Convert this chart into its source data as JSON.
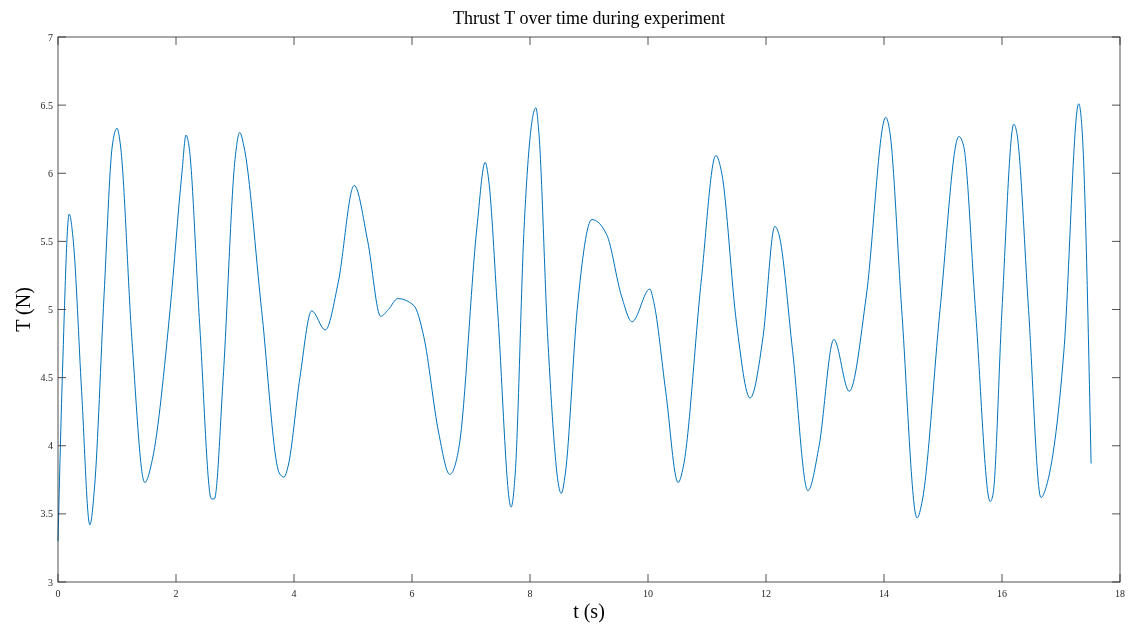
{
  "chart_data": {
    "type": "line",
    "title": "Thrust T over time during experiment",
    "xlabel": "t (s)",
    "ylabel": "T (N)",
    "xlim": [
      0,
      18
    ],
    "ylim": [
      3,
      7
    ],
    "xticks": [
      0,
      2,
      4,
      6,
      8,
      10,
      12,
      14,
      16,
      18
    ],
    "yticks": [
      3,
      3.5,
      4,
      4.5,
      5,
      5.5,
      6,
      6.5,
      7
    ],
    "grid": false,
    "marker": "none",
    "line_style": "solid",
    "series": [
      {
        "color": "#0072bd",
        "x": [
          0,
          0.08,
          0.19,
          0.26,
          0.4,
          0.54,
          0.62,
          0.78,
          0.92,
          1.0,
          1.06,
          1.25,
          1.47,
          1.6,
          1.9,
          2.1,
          2.17,
          2.22,
          2.4,
          2.6,
          2.65,
          2.8,
          3.0,
          3.08,
          3.15,
          3.45,
          3.75,
          3.83,
          3.9,
          4.1,
          4.3,
          4.53,
          4.75,
          5.02,
          5.25,
          5.47,
          5.6,
          5.76,
          6.03,
          6.2,
          6.45,
          6.64,
          6.8,
          7.1,
          7.24,
          7.3,
          7.45,
          7.68,
          7.75,
          7.9,
          8.1,
          8.15,
          8.3,
          8.53,
          8.6,
          8.8,
          9.05,
          9.3,
          9.55,
          9.73,
          10.03,
          10.1,
          10.3,
          10.51,
          10.6,
          10.9,
          11.15,
          11.25,
          11.5,
          11.73,
          11.95,
          12.15,
          12.22,
          12.45,
          12.71,
          12.9,
          13.15,
          13.41,
          13.7,
          14.03,
          14.1,
          14.3,
          14.56,
          14.65,
          14.95,
          15.27,
          15.35,
          15.55,
          15.8,
          15.85,
          16.0,
          16.2,
          16.25,
          16.45,
          16.66,
          16.75,
          17.05,
          17.3,
          17.36,
          17.51
        ],
        "values": [
          3.3,
          4.6,
          5.7,
          5.5,
          4.4,
          3.42,
          3.7,
          5.1,
          6.2,
          6.33,
          6.2,
          4.8,
          3.73,
          3.9,
          5.0,
          6.0,
          6.28,
          6.2,
          4.9,
          3.61,
          3.61,
          4.5,
          6.1,
          6.3,
          6.2,
          5.0,
          3.8,
          3.77,
          3.85,
          4.5,
          4.99,
          4.85,
          5.2,
          5.91,
          5.5,
          4.95,
          5.0,
          5.08,
          5.03,
          4.8,
          4.1,
          3.79,
          4.0,
          5.6,
          6.08,
          5.95,
          5.0,
          3.55,
          3.8,
          5.6,
          6.48,
          6.3,
          4.8,
          3.65,
          3.8,
          5.0,
          5.66,
          5.55,
          5.1,
          4.91,
          5.15,
          5.05,
          4.4,
          3.73,
          3.85,
          5.2,
          6.13,
          6.0,
          4.9,
          4.35,
          4.8,
          5.61,
          5.55,
          4.7,
          3.67,
          4.0,
          4.78,
          4.4,
          5.1,
          6.41,
          6.3,
          5.0,
          3.47,
          3.6,
          5.0,
          6.27,
          6.2,
          5.0,
          3.59,
          3.65,
          5.0,
          6.36,
          6.3,
          5.0,
          3.62,
          3.7,
          4.7,
          6.51,
          6.3,
          3.87
        ]
      }
    ]
  }
}
